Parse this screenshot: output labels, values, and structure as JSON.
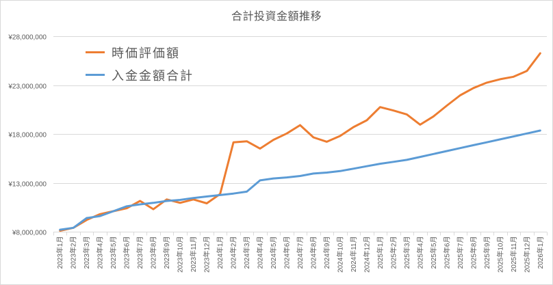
{
  "chart": {
    "title": "合計投資金額推移",
    "y_tick_labels": [
      "¥8,000,000",
      "¥13,000,000",
      "¥18,000,000",
      "¥23,000,000",
      "¥28,000,000"
    ],
    "legend": [
      {
        "label": "時価評価額",
        "color": "#ED7D31"
      },
      {
        "label": "入金金額合計",
        "color": "#5B9BD5"
      }
    ]
  },
  "chart_data": {
    "type": "line",
    "title": "合計投資金額推移",
    "xlabel": "",
    "ylabel": "",
    "ylim": [
      8000000,
      28000000
    ],
    "y_ticks": [
      8000000,
      13000000,
      18000000,
      23000000,
      28000000
    ],
    "grid": true,
    "legend_position": "upper-left-inside",
    "categories": [
      "2023年1月",
      "2023年2月",
      "2023年3月",
      "2023年4月",
      "2023年5月",
      "2023年6月",
      "2023年7月",
      "2023年8月",
      "2023年9月",
      "2023年10月",
      "2023年11月",
      "2023年12月",
      "2024年1月",
      "2024年2月",
      "2024年3月",
      "2024年4月",
      "2024年5月",
      "2024年6月",
      "2024年7月",
      "2024年8月",
      "2024年9月",
      "2024年10月",
      "2024年11月",
      "2024年12月",
      "2025年1月",
      "2025年2月",
      "2025年3月",
      "2025年4月",
      "2025年5月",
      "2025年6月",
      "2025年7月",
      "2025年8月",
      "2025年9月",
      "2025年10月",
      "2025年11月",
      "2025年12月",
      "2026年1月"
    ],
    "series": [
      {
        "name": "時価評価額",
        "color": "#ED7D31",
        "values": [
          8100000,
          8400000,
          9200000,
          9800000,
          10100000,
          10400000,
          11150000,
          10300000,
          11300000,
          10950000,
          11300000,
          10900000,
          11850000,
          17150000,
          17250000,
          16500000,
          17400000,
          18050000,
          18900000,
          17650000,
          17200000,
          17800000,
          18700000,
          19400000,
          20750000,
          20400000,
          20000000,
          18950000,
          19800000,
          20900000,
          21950000,
          22700000,
          23250000,
          23600000,
          23850000,
          24450000,
          26250000
        ]
      },
      {
        "name": "入金金額合計",
        "color": "#5B9BD5",
        "values": [
          8200000,
          8400000,
          9400000,
          9600000,
          10100000,
          10600000,
          10800000,
          10950000,
          11150000,
          11250000,
          11450000,
          11600000,
          11750000,
          11900000,
          12100000,
          13250000,
          13450000,
          13550000,
          13700000,
          13950000,
          14050000,
          14200000,
          14450000,
          14700000,
          14950000,
          15150000,
          15350000,
          15650000,
          15950000,
          16250000,
          16550000,
          16850000,
          17150000,
          17450000,
          17750000,
          18050000,
          18350000
        ]
      }
    ]
  }
}
